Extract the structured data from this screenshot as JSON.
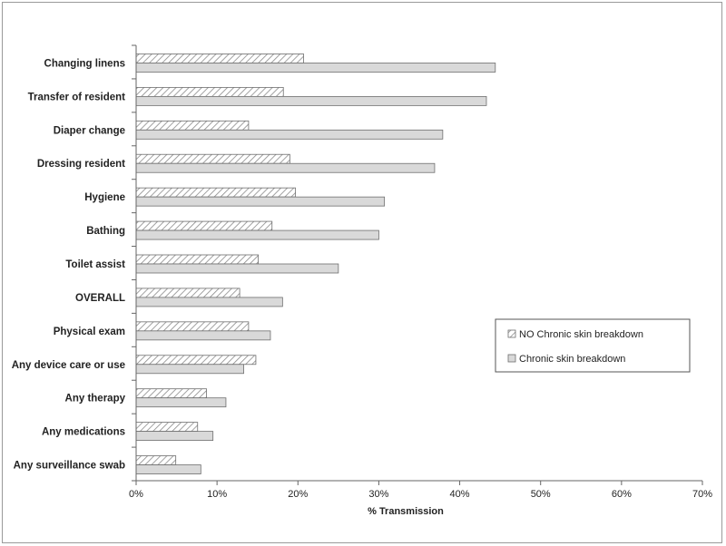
{
  "chart_data": {
    "type": "bar",
    "orientation": "horizontal",
    "categories": [
      "Changing linens",
      "Transfer of resident",
      "Diaper change",
      "Dressing resident",
      "Hygiene",
      "Bathing",
      "Toilet assist",
      "OVERALL",
      "Physical exam",
      "Any device care or use",
      "Any therapy",
      "Any medications",
      "Any surveillance swab"
    ],
    "series": [
      {
        "name": "NO Chronic skin breakdown",
        "values": [
          20.7,
          18.2,
          13.9,
          19.0,
          19.7,
          16.8,
          15.1,
          12.8,
          13.9,
          14.8,
          8.7,
          7.6,
          4.9
        ],
        "fill": "hatched",
        "color": "#d0d0d0"
      },
      {
        "name": "Chronic skin breakdown",
        "values": [
          44.4,
          43.3,
          37.9,
          36.9,
          30.7,
          30.0,
          25.0,
          18.1,
          16.6,
          13.3,
          11.1,
          9.5,
          8.0
        ],
        "fill": "solid",
        "color": "#d9d9d9"
      }
    ],
    "xlabel": "% Transmission",
    "xlim": [
      0,
      70
    ],
    "xticks": [
      "0%",
      "10%",
      "20%",
      "30%",
      "40%",
      "50%",
      "60%",
      "70%"
    ],
    "grid": false,
    "legend": "right"
  }
}
